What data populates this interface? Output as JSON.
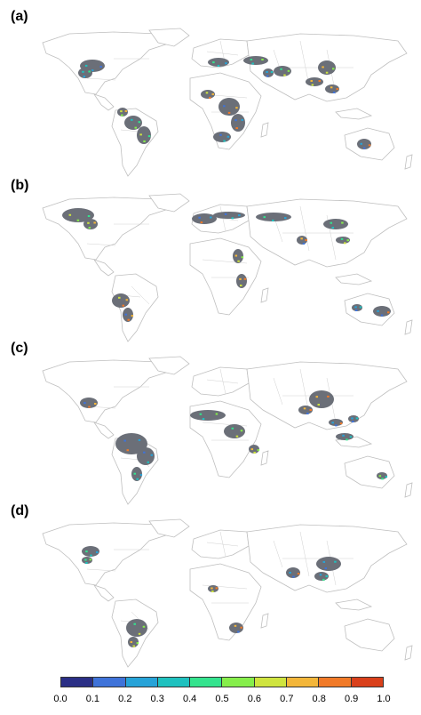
{
  "panels": [
    {
      "label": "(a)"
    },
    {
      "label": "(b)"
    },
    {
      "label": "(c)"
    },
    {
      "label": "(d)"
    }
  ],
  "colorbar": {
    "ticks": [
      "0.0",
      "0.1",
      "0.2",
      "0.3",
      "0.4",
      "0.5",
      "0.6",
      "0.7",
      "0.8",
      "0.9",
      "1.0"
    ],
    "colors": [
      "#2b2f86",
      "#3f73d9",
      "#27a3d8",
      "#1fc1bf",
      "#34e38e",
      "#86ee4b",
      "#cfe43f",
      "#f3b63a",
      "#f17a28",
      "#d9401b",
      "#9e1410"
    ]
  },
  "colors": {
    "land_outline": "#bfbfbf",
    "crop_gray": "#6b6f78"
  }
}
